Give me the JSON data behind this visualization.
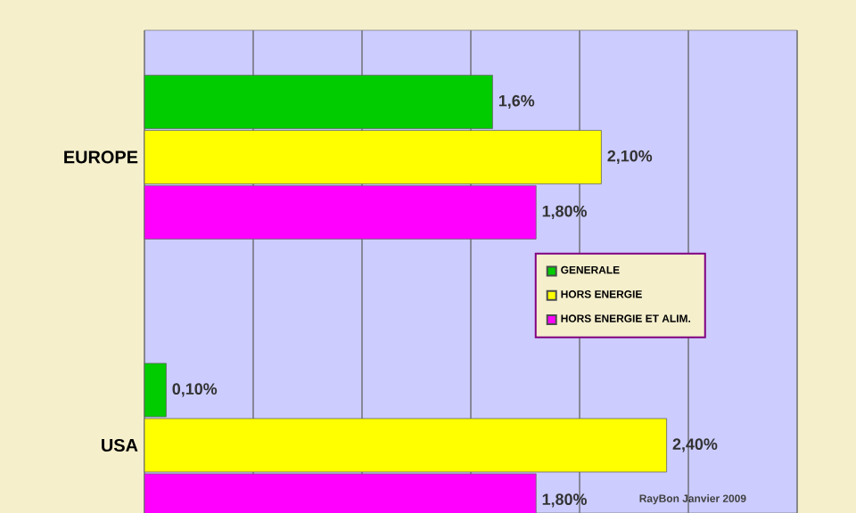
{
  "chart_data": {
    "type": "bar",
    "orientation": "horizontal",
    "categories": [
      "EUROPE",
      "USA"
    ],
    "series": [
      {
        "name": "GENERALE",
        "color": "#00cc00",
        "values": [
          1.6,
          0.1
        ],
        "value_labels": [
          "1,6%",
          "0,10%"
        ]
      },
      {
        "name": "HORS ENERGIE",
        "color": "#ffff00",
        "values": [
          2.1,
          2.4
        ],
        "value_labels": [
          "2,10%",
          "2,40%"
        ]
      },
      {
        "name": "HORS ENERGIE  ET ALIM.",
        "color": "#ff00ff",
        "values": [
          1.8,
          1.8
        ],
        "value_labels": [
          "1,80%",
          "1,80%"
        ]
      }
    ],
    "xlim": [
      0,
      3
    ],
    "xticks": [
      {
        "value": 0,
        "label": null
      },
      {
        "value": 0.5,
        "label": null
      },
      {
        "value": 1,
        "label": null
      },
      {
        "value": 1.5,
        "label": null
      },
      {
        "value": 2,
        "label": null
      },
      {
        "value": 2.5,
        "label": null
      },
      {
        "value": 3,
        "label": null
      }
    ],
    "tick_labels": "y",
    "grid": "x",
    "legend": "right",
    "annotations": [
      "RayBon  Janvier 2009"
    ]
  }
}
